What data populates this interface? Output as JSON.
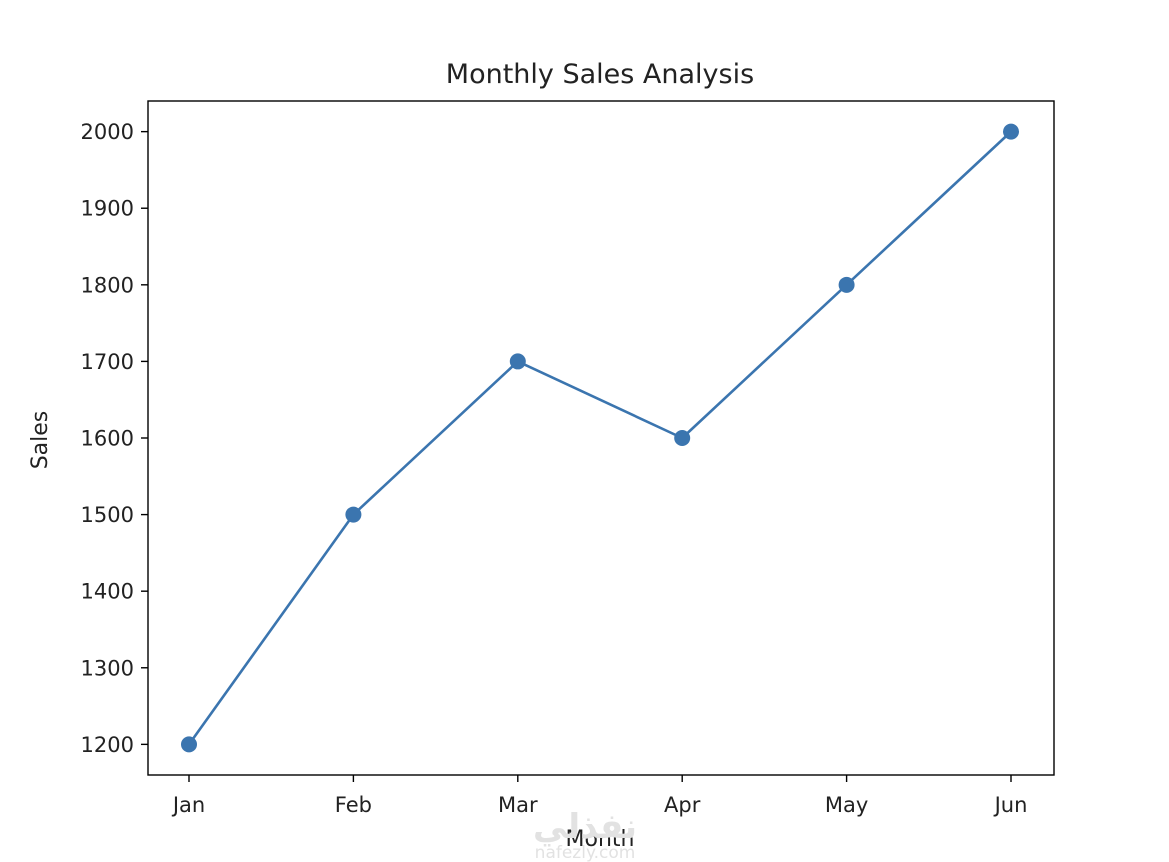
{
  "chart_data": {
    "type": "line",
    "title": "Monthly Sales Analysis",
    "xlabel": "Month",
    "ylabel": "Sales",
    "categories": [
      "Jan",
      "Feb",
      "Mar",
      "Apr",
      "May",
      "Jun"
    ],
    "series": [
      {
        "values": [
          1200,
          1500,
          1700,
          1600,
          1800,
          2000
        ],
        "color": "#3b75af",
        "marker": "circle"
      }
    ],
    "yticks": [
      1200,
      1300,
      1400,
      1500,
      1600,
      1700,
      1800,
      1900,
      2000
    ],
    "ylim": [
      1160,
      2040
    ],
    "grid": false,
    "legend": "none"
  },
  "watermark": {
    "text": "نفذلي",
    "subtext": "nafezly.com"
  }
}
